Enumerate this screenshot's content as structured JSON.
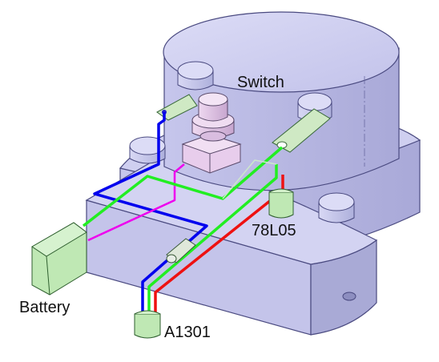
{
  "labels": {
    "switch": "Switch",
    "regulator": "78L05",
    "battery": "Battery",
    "sensor": "A1301"
  },
  "colors": {
    "body": "#c9c9ee",
    "body_edge": "#4a4a80",
    "component_green": "#bfe8b4",
    "wire_blue": "#0000ee",
    "wire_green": "#22ee22",
    "wire_red": "#ee1111",
    "wire_magenta": "#ee00ee",
    "switch_pink": "#e2c6e6"
  }
}
